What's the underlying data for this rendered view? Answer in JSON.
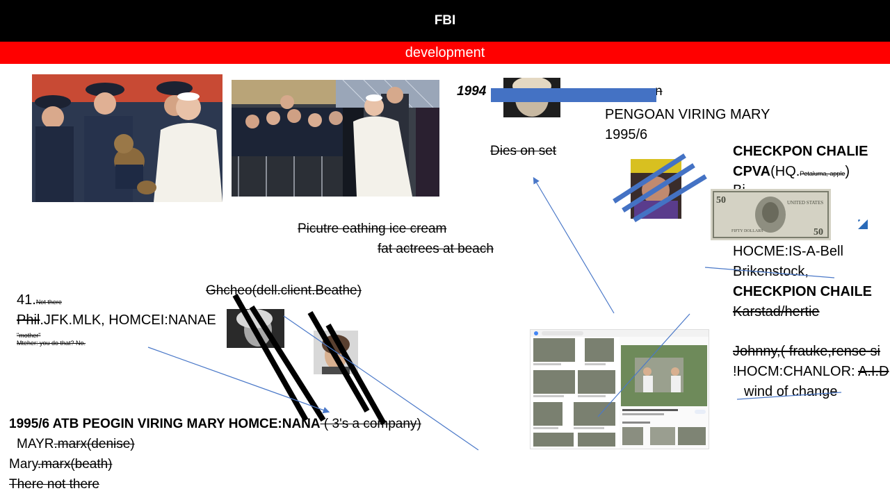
{
  "header": {
    "title": "FBI",
    "subtitle": "development"
  },
  "top_note": {
    "year": "1994",
    "struck_end": "n",
    "line1": "PENGOAN VIRING MARY",
    "line2": "1995/6",
    "dies": "Dies on set"
  },
  "right_col": {
    "checkpon": "CHECKPON CHALIE",
    "cpva": "CPVA",
    "hq_open": "(HQ.",
    "hq_small": "Petaluma, apple",
    "hq_close": ")",
    "hidden_line": "Bi...",
    "hocme": "HOCME:IS-A-Bell",
    "brikenstock": "Brikenstock,",
    "checkpion": "CHECKPION CHAILE",
    "karstad": "Karstad/hertie",
    "johnny": "Johnny,( frauke,rense si",
    "hocm_prefix": "!HOCM:CHANLOR: ",
    "hocm_struck": "A.I.D",
    "wind": "wind of change"
  },
  "middle": {
    "picture1": "Picutre eathing ice cream",
    "picture2": "fat actrees at beach",
    "ghcheo": "Ghcheo(dell.client.Beathe)"
  },
  "left_block": {
    "num": "41.",
    "not_there": "Not there",
    "phil": "Phil",
    "jfk": ".JFK.MLK, HOMCEI:NANAE",
    "mother": "\"mother\"",
    "mteher": "Mteher: you do that? No."
  },
  "bottom_block": {
    "line1_bold": "1995/6 ATB  PEOGIN VIRING MARY HOMCE:NANA",
    "line1_struck": " ( 3's a company)",
    "mayr_prefix": "MAYR",
    "mayr_struck": ".marx(denise)",
    "mary_prefix": "Mary",
    "mary_struck": ".marx(beath)",
    "there": "There not there"
  },
  "images": {
    "photo1": "pope-with-guards-teddy-bear",
    "photo2": "pope-shaking-hands",
    "screenshot": "image-search-results"
  },
  "colors": {
    "header_black": "#000000",
    "header_red": "#ff0000",
    "accent_blue": "#4472c4",
    "arrow_blue": "#4a78c8"
  }
}
